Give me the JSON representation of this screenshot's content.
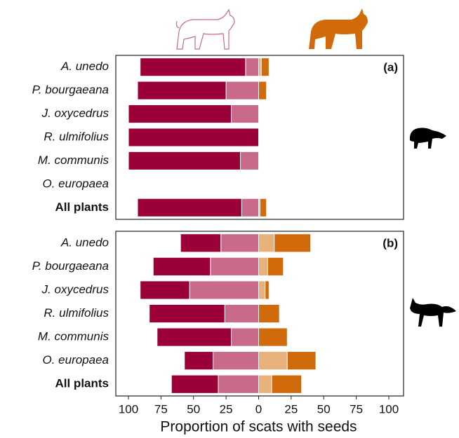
{
  "chart_data": [
    {
      "type": "bar",
      "label": "(a)",
      "categories": [
        "A. unedo",
        "P. bourgaeana",
        "J. oxycedrus",
        "R. ulmifolius",
        "M. communis",
        "O. europaea",
        "All plants"
      ],
      "xlim": [
        -100,
        100
      ],
      "series": [
        {
          "color": "#c96a8a",
          "values": [
            -10,
            -25,
            -21,
            0,
            -14,
            0,
            -13
          ]
        },
        {
          "color": "#9b0038",
          "values": [
            -81,
            -68,
            -79,
            -100,
            -86,
            0,
            -80
          ]
        },
        {
          "color": "#e8b07a",
          "values": [
            2,
            0,
            0,
            0,
            0,
            0,
            1
          ]
        },
        {
          "color": "#d06a0b",
          "values": [
            6,
            6,
            0,
            0,
            0,
            0,
            5
          ]
        }
      ]
    },
    {
      "type": "bar",
      "label": "(b)",
      "categories": [
        "A. unedo",
        "P. bourgaeana",
        "J. oxycedrus",
        "R. ulmifolius",
        "M. communis",
        "O. europaea",
        "All plants"
      ],
      "xlim": [
        -100,
        100
      ],
      "xticks": [
        {
          "value": -100,
          "label": "100"
        },
        {
          "value": -75,
          "label": "75"
        },
        {
          "value": -50,
          "label": "50"
        },
        {
          "value": -25,
          "label": "25"
        },
        0,
        25,
        50,
        75,
        100
      ],
      "xlabel": "Proportion of scats with seeds",
      "series": [
        {
          "color": "#c96a8a",
          "values": [
            -29,
            -37,
            -53,
            -26,
            -21,
            -35,
            -31
          ]
        },
        {
          "color": "#9b0038",
          "values": [
            -31,
            -44,
            -38,
            -58,
            -57,
            -22,
            -36
          ]
        },
        {
          "color": "#e8b07a",
          "values": [
            12,
            7,
            5,
            0,
            0,
            22,
            10
          ]
        },
        {
          "color": "#d06a0b",
          "values": [
            28,
            12,
            3,
            16,
            22,
            22,
            23
          ]
        }
      ]
    }
  ]
}
